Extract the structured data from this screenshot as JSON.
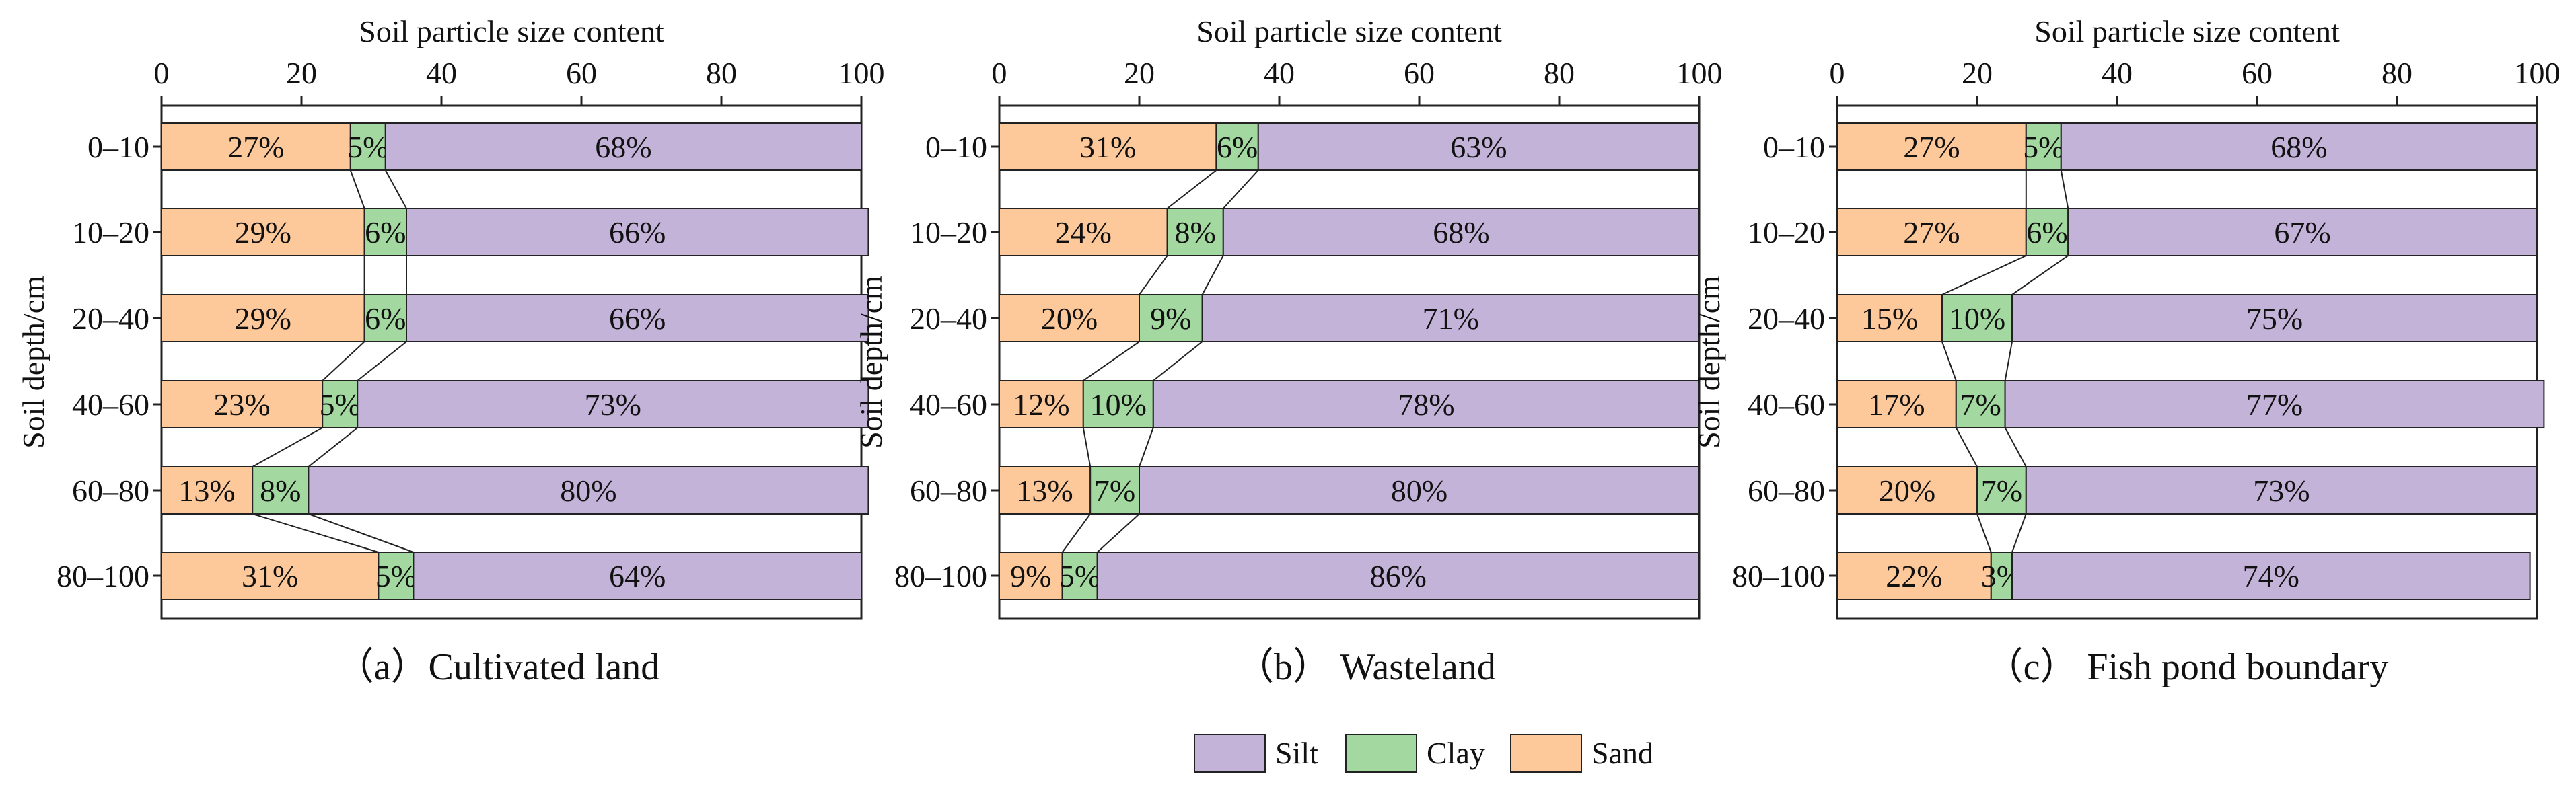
{
  "colors": {
    "silt": "#c3b3d9",
    "clay": "#a3d9a0",
    "sand": "#fdc89a",
    "stroke": "#222222"
  },
  "legend": [
    {
      "key": "silt",
      "label": "Silt"
    },
    {
      "key": "clay",
      "label": "Clay"
    },
    {
      "key": "sand",
      "label": "Sand"
    }
  ],
  "chart_data": [
    {
      "type": "bar",
      "orientation": "horizontal",
      "stacked": true,
      "title": "（a）Cultivated land",
      "xlabel": "Soil particle size content",
      "ylabel": "Soil depth/cm",
      "xlim": [
        0,
        100
      ],
      "xticks": [
        "0",
        "20",
        "40",
        "60",
        "80",
        "100"
      ],
      "categories": [
        "0–10",
        "10–20",
        "20–40",
        "40–60",
        "60–80",
        "80–100"
      ],
      "series": [
        {
          "name": "Sand",
          "key": "sand",
          "values": [
            27,
            29,
            29,
            23,
            13,
            31
          ],
          "labels": [
            "27%",
            "29%",
            "29%",
            "23%",
            "13%",
            "31%"
          ]
        },
        {
          "name": "Clay",
          "key": "clay",
          "values": [
            5,
            6,
            6,
            5,
            8,
            5
          ],
          "labels": [
            "5%",
            "6%",
            "6%",
            "5%",
            "8%",
            "5%"
          ]
        },
        {
          "name": "Silt",
          "key": "silt",
          "values": [
            68,
            66,
            66,
            73,
            80,
            64
          ],
          "labels": [
            "68%",
            "66%",
            "66%",
            "73%",
            "80%",
            "64%"
          ]
        }
      ]
    },
    {
      "type": "bar",
      "orientation": "horizontal",
      "stacked": true,
      "title": "（b）  Wasteland",
      "xlabel": "Soil particle size content",
      "ylabel": "Soil depth/cm",
      "xlim": [
        0,
        100
      ],
      "xticks": [
        "0",
        "20",
        "40",
        "60",
        "80",
        "100"
      ],
      "categories": [
        "0–10",
        "10–20",
        "20–40",
        "40–60",
        "60–80",
        "80–100"
      ],
      "series": [
        {
          "name": "Sand",
          "key": "sand",
          "values": [
            31,
            24,
            20,
            12,
            13,
            9
          ],
          "labels": [
            "31%",
            "24%",
            "20%",
            "12%",
            "13%",
            "9%"
          ]
        },
        {
          "name": "Clay",
          "key": "clay",
          "values": [
            6,
            8,
            9,
            10,
            7,
            5
          ],
          "labels": [
            "6%",
            "8%",
            "9%",
            "10%",
            "7%",
            "5%"
          ]
        },
        {
          "name": "Silt",
          "key": "silt",
          "values": [
            63,
            68,
            71,
            78,
            80,
            86
          ],
          "labels": [
            "63%",
            "68%",
            "71%",
            "78%",
            "80%",
            "86%"
          ]
        }
      ]
    },
    {
      "type": "bar",
      "orientation": "horizontal",
      "stacked": true,
      "title": "（c）  Fish pond boundary",
      "xlabel": "Soil particle size content",
      "ylabel": "Soil depth/cm",
      "xlim": [
        0,
        100
      ],
      "xticks": [
        "0",
        "20",
        "40",
        "60",
        "80",
        "100"
      ],
      "categories": [
        "0–10",
        "10–20",
        "20–40",
        "40–60",
        "60–80",
        "80–100"
      ],
      "series": [
        {
          "name": "Sand",
          "key": "sand",
          "values": [
            27,
            27,
            15,
            17,
            20,
            22
          ],
          "labels": [
            "27%",
            "27%",
            "15%",
            "17%",
            "20%",
            "22%"
          ]
        },
        {
          "name": "Clay",
          "key": "clay",
          "values": [
            5,
            6,
            10,
            7,
            7,
            3
          ],
          "labels": [
            "5%",
            "6%",
            "10%",
            "7%",
            "7%",
            "3%"
          ]
        },
        {
          "name": "Silt",
          "key": "silt",
          "values": [
            68,
            67,
            75,
            77,
            73,
            74
          ],
          "labels": [
            "68%",
            "67%",
            "75%",
            "77%",
            "73%",
            "74%"
          ]
        }
      ]
    }
  ]
}
